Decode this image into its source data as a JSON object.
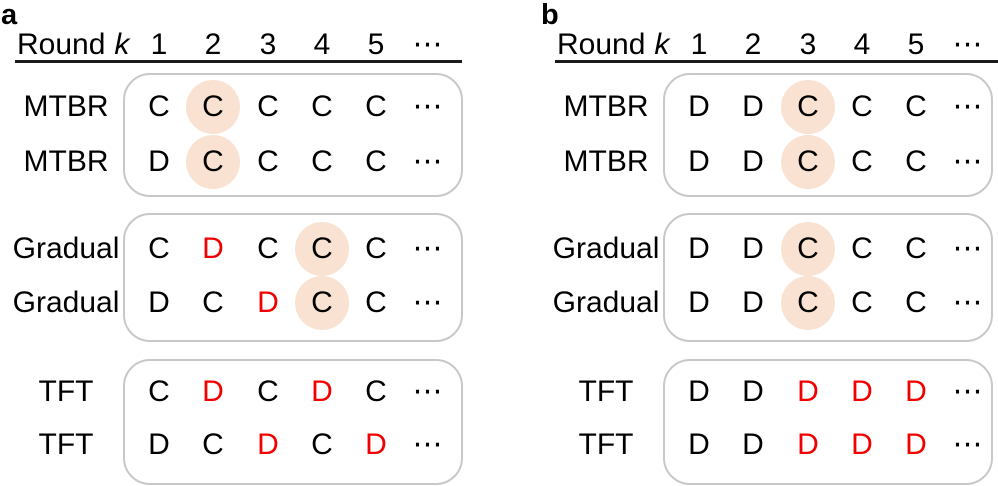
{
  "colors": {
    "highlight_circle": "#f9e2d1",
    "defection_red": "#f20000",
    "box_border": "#c8c8c8",
    "text": "#000000"
  },
  "figure": {
    "panels": [
      {
        "label": "a",
        "header": {
          "round_label": "Round",
          "round_var": "k",
          "columns": [
            "1",
            "2",
            "3",
            "4",
            "5",
            "⋯"
          ]
        },
        "groups": [
          {
            "rows": [
              {
                "strategy": "MTBR",
                "moves": [
                  {
                    "v": "C"
                  },
                  {
                    "v": "C",
                    "circled": true
                  },
                  {
                    "v": "C"
                  },
                  {
                    "v": "C"
                  },
                  {
                    "v": "C"
                  },
                  {
                    "v": "⋯"
                  }
                ]
              },
              {
                "strategy": "MTBR",
                "moves": [
                  {
                    "v": "D"
                  },
                  {
                    "v": "C",
                    "circled": true
                  },
                  {
                    "v": "C"
                  },
                  {
                    "v": "C"
                  },
                  {
                    "v": "C"
                  },
                  {
                    "v": "⋯"
                  }
                ]
              }
            ]
          },
          {
            "rows": [
              {
                "strategy": "Gradual",
                "moves": [
                  {
                    "v": "C"
                  },
                  {
                    "v": "D",
                    "red": true
                  },
                  {
                    "v": "C"
                  },
                  {
                    "v": "C",
                    "circled": true
                  },
                  {
                    "v": "C"
                  },
                  {
                    "v": "⋯"
                  }
                ]
              },
              {
                "strategy": "Gradual",
                "moves": [
                  {
                    "v": "D"
                  },
                  {
                    "v": "C"
                  },
                  {
                    "v": "D",
                    "red": true
                  },
                  {
                    "v": "C",
                    "circled": true
                  },
                  {
                    "v": "C"
                  },
                  {
                    "v": "⋯"
                  }
                ]
              }
            ]
          },
          {
            "rows": [
              {
                "strategy": "TFT",
                "moves": [
                  {
                    "v": "C"
                  },
                  {
                    "v": "D",
                    "red": true
                  },
                  {
                    "v": "C"
                  },
                  {
                    "v": "D",
                    "red": true
                  },
                  {
                    "v": "C"
                  },
                  {
                    "v": "⋯"
                  }
                ]
              },
              {
                "strategy": "TFT",
                "moves": [
                  {
                    "v": "D"
                  },
                  {
                    "v": "C"
                  },
                  {
                    "v": "D",
                    "red": true
                  },
                  {
                    "v": "C"
                  },
                  {
                    "v": "D",
                    "red": true
                  },
                  {
                    "v": "⋯"
                  }
                ]
              }
            ]
          }
        ]
      },
      {
        "label": "b",
        "header": {
          "round_label": "Round",
          "round_var": "k",
          "columns": [
            "1",
            "2",
            "3",
            "4",
            "5",
            "⋯"
          ]
        },
        "groups": [
          {
            "rows": [
              {
                "strategy": "MTBR",
                "moves": [
                  {
                    "v": "D"
                  },
                  {
                    "v": "D"
                  },
                  {
                    "v": "C",
                    "circled": true
                  },
                  {
                    "v": "C"
                  },
                  {
                    "v": "C"
                  },
                  {
                    "v": "⋯"
                  }
                ]
              },
              {
                "strategy": "MTBR",
                "moves": [
                  {
                    "v": "D"
                  },
                  {
                    "v": "D"
                  },
                  {
                    "v": "C",
                    "circled": true
                  },
                  {
                    "v": "C"
                  },
                  {
                    "v": "C"
                  },
                  {
                    "v": "⋯"
                  }
                ]
              }
            ]
          },
          {
            "rows": [
              {
                "strategy": "Gradual",
                "moves": [
                  {
                    "v": "D"
                  },
                  {
                    "v": "D"
                  },
                  {
                    "v": "C",
                    "circled": true
                  },
                  {
                    "v": "C"
                  },
                  {
                    "v": "C"
                  },
                  {
                    "v": "⋯"
                  }
                ]
              },
              {
                "strategy": "Gradual",
                "moves": [
                  {
                    "v": "D"
                  },
                  {
                    "v": "D"
                  },
                  {
                    "v": "C",
                    "circled": true
                  },
                  {
                    "v": "C"
                  },
                  {
                    "v": "C"
                  },
                  {
                    "v": "⋯"
                  }
                ]
              }
            ]
          },
          {
            "rows": [
              {
                "strategy": "TFT",
                "moves": [
                  {
                    "v": "D"
                  },
                  {
                    "v": "D"
                  },
                  {
                    "v": "D",
                    "red": true
                  },
                  {
                    "v": "D",
                    "red": true
                  },
                  {
                    "v": "D",
                    "red": true
                  },
                  {
                    "v": "⋯"
                  }
                ]
              },
              {
                "strategy": "TFT",
                "moves": [
                  {
                    "v": "D"
                  },
                  {
                    "v": "D"
                  },
                  {
                    "v": "D",
                    "red": true
                  },
                  {
                    "v": "D",
                    "red": true
                  },
                  {
                    "v": "D",
                    "red": true
                  },
                  {
                    "v": "⋯"
                  }
                ]
              }
            ]
          }
        ]
      }
    ]
  }
}
